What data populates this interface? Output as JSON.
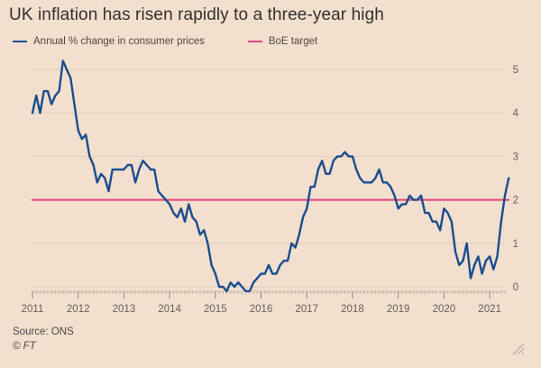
{
  "chart_data": {
    "type": "line",
    "title": "UK inflation has risen rapidly to a three-year high",
    "xlabel": "",
    "ylabel": "",
    "x_ticks": [
      "2011",
      "2012",
      "2013",
      "2014",
      "2015",
      "2016",
      "2017",
      "2018",
      "2019",
      "2020",
      "2021"
    ],
    "y_ticks": [
      "0",
      "1",
      "2",
      "3",
      "4",
      "5"
    ],
    "ylim": [
      -0.1,
      5.3
    ],
    "xlim": [
      "2011-01",
      "2021-05"
    ],
    "grid": true,
    "legend_position": "top-left",
    "series": [
      {
        "name": "Annual % change in consumer prices",
        "color": "#1a4d8f",
        "points": [
          [
            "2011-01",
            4.0
          ],
          [
            "2011-02",
            4.4
          ],
          [
            "2011-03",
            4.0
          ],
          [
            "2011-04",
            4.5
          ],
          [
            "2011-05",
            4.5
          ],
          [
            "2011-06",
            4.2
          ],
          [
            "2011-07",
            4.4
          ],
          [
            "2011-08",
            4.5
          ],
          [
            "2011-09",
            5.2
          ],
          [
            "2011-10",
            5.0
          ],
          [
            "2011-11",
            4.8
          ],
          [
            "2011-12",
            4.2
          ],
          [
            "2012-01",
            3.6
          ],
          [
            "2012-02",
            3.4
          ],
          [
            "2012-03",
            3.5
          ],
          [
            "2012-04",
            3.0
          ],
          [
            "2012-05",
            2.8
          ],
          [
            "2012-06",
            2.4
          ],
          [
            "2012-07",
            2.6
          ],
          [
            "2012-08",
            2.5
          ],
          [
            "2012-09",
            2.2
          ],
          [
            "2012-10",
            2.7
          ],
          [
            "2012-11",
            2.7
          ],
          [
            "2012-12",
            2.7
          ],
          [
            "2013-01",
            2.7
          ],
          [
            "2013-02",
            2.8
          ],
          [
            "2013-03",
            2.8
          ],
          [
            "2013-04",
            2.4
          ],
          [
            "2013-05",
            2.7
          ],
          [
            "2013-06",
            2.9
          ],
          [
            "2013-07",
            2.8
          ],
          [
            "2013-08",
            2.7
          ],
          [
            "2013-09",
            2.7
          ],
          [
            "2013-10",
            2.2
          ],
          [
            "2013-11",
            2.1
          ],
          [
            "2013-12",
            2.0
          ],
          [
            "2014-01",
            1.9
          ],
          [
            "2014-02",
            1.7
          ],
          [
            "2014-03",
            1.6
          ],
          [
            "2014-04",
            1.8
          ],
          [
            "2014-05",
            1.5
          ],
          [
            "2014-06",
            1.9
          ],
          [
            "2014-07",
            1.6
          ],
          [
            "2014-08",
            1.5
          ],
          [
            "2014-09",
            1.2
          ],
          [
            "2014-10",
            1.3
          ],
          [
            "2014-11",
            1.0
          ],
          [
            "2014-12",
            0.5
          ],
          [
            "2015-01",
            0.3
          ],
          [
            "2015-02",
            0.0
          ],
          [
            "2015-03",
            0.0
          ],
          [
            "2015-04",
            -0.1
          ],
          [
            "2015-05",
            0.1
          ],
          [
            "2015-06",
            0.0
          ],
          [
            "2015-07",
            0.1
          ],
          [
            "2015-08",
            0.0
          ],
          [
            "2015-09",
            -0.1
          ],
          [
            "2015-10",
            -0.1
          ],
          [
            "2015-11",
            0.1
          ],
          [
            "2015-12",
            0.2
          ],
          [
            "2016-01",
            0.3
          ],
          [
            "2016-02",
            0.3
          ],
          [
            "2016-03",
            0.5
          ],
          [
            "2016-04",
            0.3
          ],
          [
            "2016-05",
            0.3
          ],
          [
            "2016-06",
            0.5
          ],
          [
            "2016-07",
            0.6
          ],
          [
            "2016-08",
            0.6
          ],
          [
            "2016-09",
            1.0
          ],
          [
            "2016-10",
            0.9
          ],
          [
            "2016-11",
            1.2
          ],
          [
            "2016-12",
            1.6
          ],
          [
            "2017-01",
            1.8
          ],
          [
            "2017-02",
            2.3
          ],
          [
            "2017-03",
            2.3
          ],
          [
            "2017-04",
            2.7
          ],
          [
            "2017-05",
            2.9
          ],
          [
            "2017-06",
            2.6
          ],
          [
            "2017-07",
            2.6
          ],
          [
            "2017-08",
            2.9
          ],
          [
            "2017-09",
            3.0
          ],
          [
            "2017-10",
            3.0
          ],
          [
            "2017-11",
            3.1
          ],
          [
            "2017-12",
            3.0
          ],
          [
            "2018-01",
            3.0
          ],
          [
            "2018-02",
            2.7
          ],
          [
            "2018-03",
            2.5
          ],
          [
            "2018-04",
            2.4
          ],
          [
            "2018-05",
            2.4
          ],
          [
            "2018-06",
            2.4
          ],
          [
            "2018-07",
            2.5
          ],
          [
            "2018-08",
            2.7
          ],
          [
            "2018-09",
            2.4
          ],
          [
            "2018-10",
            2.4
          ],
          [
            "2018-11",
            2.3
          ],
          [
            "2018-12",
            2.1
          ],
          [
            "2019-01",
            1.8
          ],
          [
            "2019-02",
            1.9
          ],
          [
            "2019-03",
            1.9
          ],
          [
            "2019-04",
            2.1
          ],
          [
            "2019-05",
            2.0
          ],
          [
            "2019-06",
            2.0
          ],
          [
            "2019-07",
            2.1
          ],
          [
            "2019-08",
            1.7
          ],
          [
            "2019-09",
            1.7
          ],
          [
            "2019-10",
            1.5
          ],
          [
            "2019-11",
            1.5
          ],
          [
            "2019-12",
            1.3
          ],
          [
            "2020-01",
            1.8
          ],
          [
            "2020-02",
            1.7
          ],
          [
            "2020-03",
            1.5
          ],
          [
            "2020-04",
            0.8
          ],
          [
            "2020-05",
            0.5
          ],
          [
            "2020-06",
            0.6
          ],
          [
            "2020-07",
            1.0
          ],
          [
            "2020-08",
            0.2
          ],
          [
            "2020-09",
            0.5
          ],
          [
            "2020-10",
            0.7
          ],
          [
            "2020-11",
            0.3
          ],
          [
            "2020-12",
            0.6
          ],
          [
            "2021-01",
            0.7
          ],
          [
            "2021-02",
            0.4
          ],
          [
            "2021-03",
            0.7
          ],
          [
            "2021-04",
            1.5
          ],
          [
            "2021-05",
            2.1
          ],
          [
            "2021-06",
            2.5
          ]
        ]
      },
      {
        "name": "BoE target",
        "color": "#e0457b",
        "points": [
          [
            "2011-01",
            2.0
          ],
          [
            "2021-06",
            2.0
          ]
        ]
      }
    ]
  },
  "footer": {
    "source": "Source: ONS",
    "credit": "© FT"
  }
}
